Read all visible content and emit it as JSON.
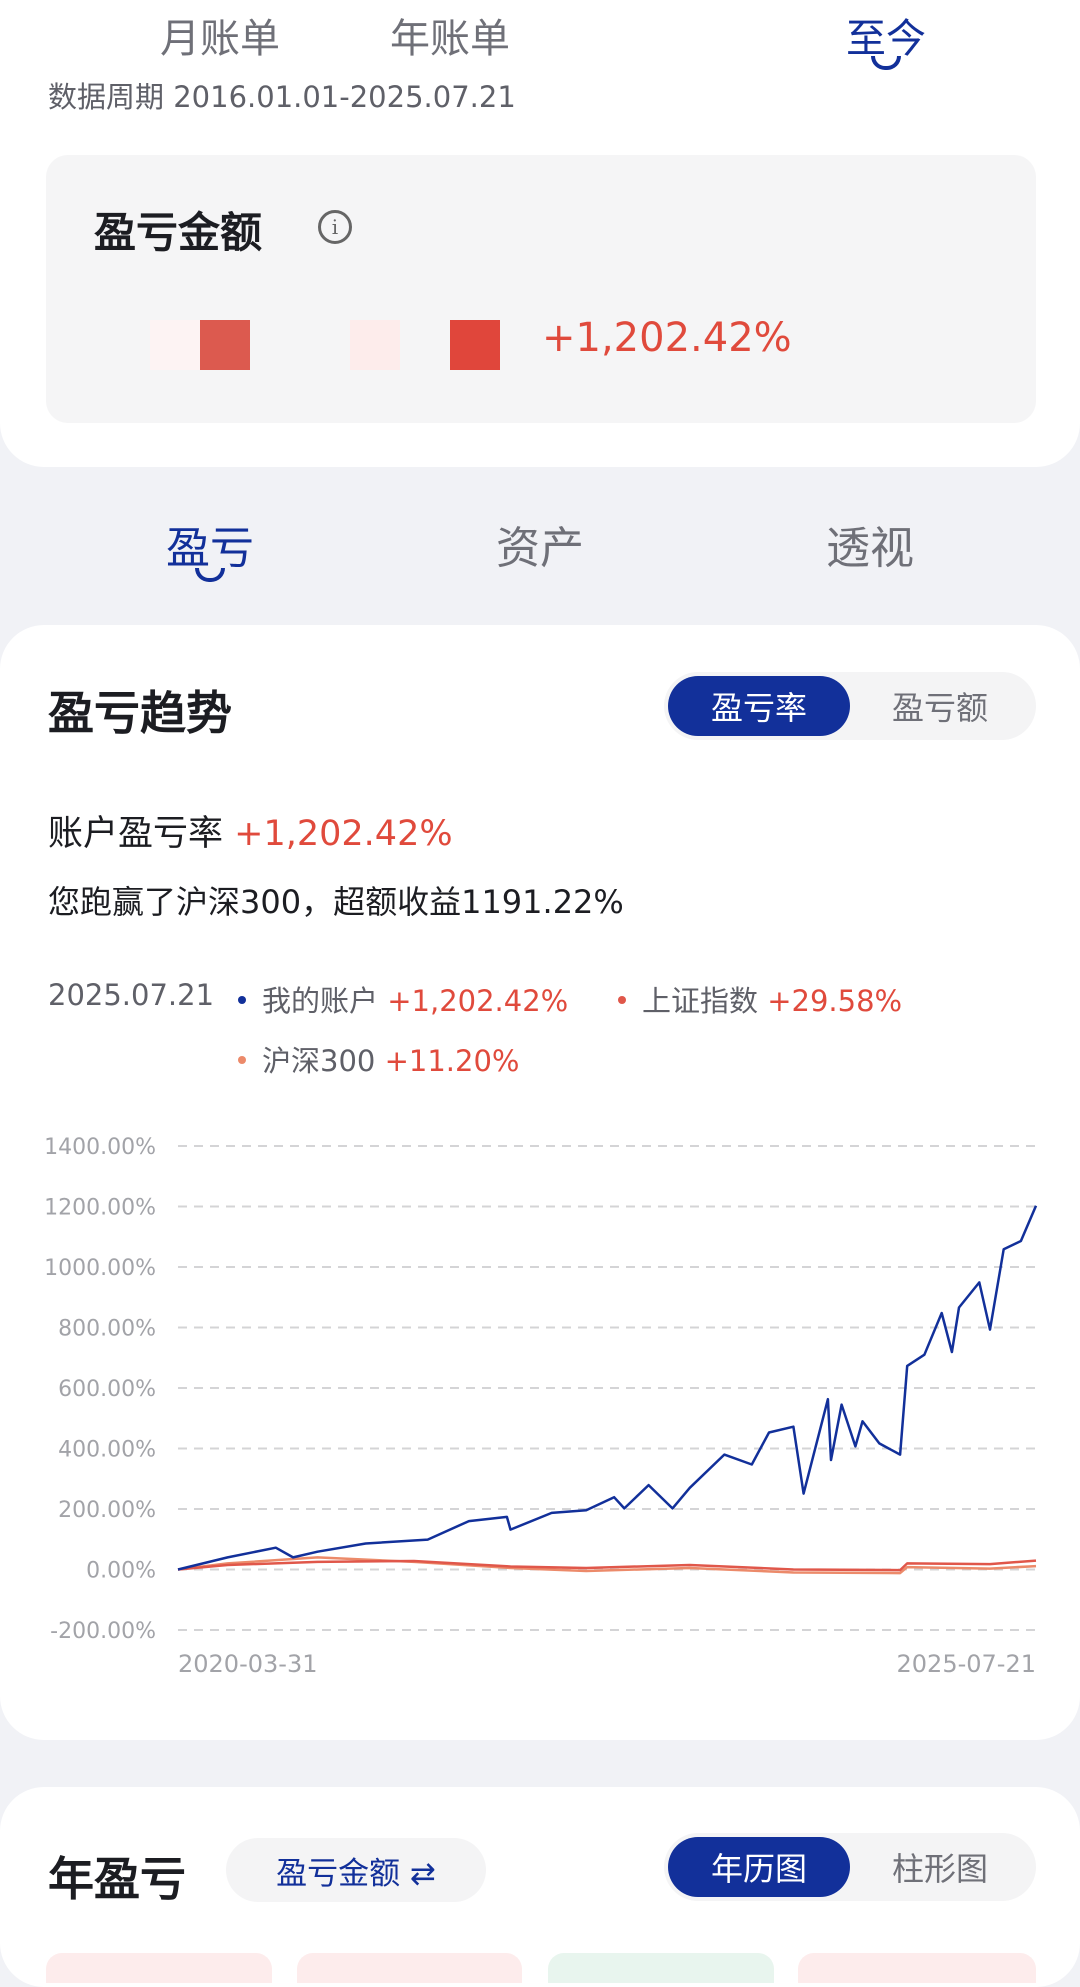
{
  "period_tabs": [
    {
      "label": "月账单"
    },
    {
      "label": "年账单"
    },
    {
      "label": "至今",
      "active": true
    }
  ],
  "period_text": "数据周期 2016.01.01-2025.07.21",
  "pnl_card": {
    "title": "盈亏金额",
    "info_icon": "info-icon",
    "amount_masked": true,
    "rate": "+1,202.42%"
  },
  "section_tabs": [
    {
      "label": "盈亏",
      "active": true
    },
    {
      "label": "资产"
    },
    {
      "label": "透视"
    }
  ],
  "trend": {
    "title": "盈亏趋势",
    "toggle": [
      {
        "label": "盈亏率",
        "active": true
      },
      {
        "label": "盈亏额"
      }
    ],
    "rate_label": "账户盈亏率",
    "rate_value": "+1,202.42%",
    "beat_text": "您跑赢了沪深300，超额收益1191.22%",
    "legend_date": "2025.07.21",
    "legend": [
      {
        "name": "我的账户",
        "value": "+1,202.42%",
        "color": "#12309a"
      },
      {
        "name": "上证指数",
        "value": "+29.58%",
        "color": "#e0574a"
      },
      {
        "name": "沪深300",
        "value": "+11.20%",
        "color": "#ec8a6a"
      }
    ]
  },
  "chart_data": {
    "type": "line",
    "ylim": [
      -200,
      1400
    ],
    "yticks": [
      "1400.00%",
      "1200.00%",
      "1000.00%",
      "800.00%",
      "600.00%",
      "400.00%",
      "200.00%",
      "0.00%",
      "-200.00%"
    ],
    "ytick_values": [
      1400,
      1200,
      1000,
      800,
      600,
      400,
      200,
      0,
      -200
    ],
    "xlim": [
      "2020-03-31",
      "2025-07-21"
    ],
    "xticks": [
      "2020-03-31",
      "2025-07-21"
    ],
    "grid": true,
    "series": [
      {
        "name": "我的账户",
        "color": "#12309a",
        "points": [
          [
            "2020-03-31",
            0
          ],
          [
            "2020-07-21",
            40
          ],
          [
            "2020-11-07",
            72
          ],
          [
            "2020-12-16",
            40
          ],
          [
            "2021-02-09",
            59
          ],
          [
            "2021-05-29",
            86
          ],
          [
            "2021-10-16",
            99
          ],
          [
            "2022-01-17",
            160
          ],
          [
            "2022-04-13",
            174
          ],
          [
            "2022-04-21",
            132
          ],
          [
            "2022-07-23",
            187
          ],
          [
            "2022-10-09",
            196
          ],
          [
            "2022-12-11",
            239
          ],
          [
            "2023-01-03",
            202
          ],
          [
            "2023-02-27",
            279
          ],
          [
            "2023-04-22",
            202
          ],
          [
            "2023-05-31",
            270
          ],
          [
            "2023-08-17",
            380
          ],
          [
            "2023-10-18",
            347
          ],
          [
            "2023-11-26",
            453
          ],
          [
            "2024-01-20",
            472
          ],
          [
            "2024-02-12",
            251
          ],
          [
            "2024-04-07",
            563
          ],
          [
            "2024-04-14",
            362
          ],
          [
            "2024-05-08",
            545
          ],
          [
            "2024-06-08",
            407
          ],
          [
            "2024-06-24",
            490
          ],
          [
            "2024-08-01",
            417
          ],
          [
            "2024-09-17",
            380
          ],
          [
            "2024-10-03",
            673
          ],
          [
            "2024-11-11",
            710
          ],
          [
            "2024-12-20",
            848
          ],
          [
            "2025-01-12",
            719
          ],
          [
            "2025-01-28",
            866
          ],
          [
            "2025-03-15",
            949
          ],
          [
            "2025-04-08",
            793
          ],
          [
            "2025-05-09",
            1059
          ],
          [
            "2025-06-17",
            1086
          ],
          [
            "2025-07-21",
            1202.42
          ]
        ]
      },
      {
        "name": "上证指数",
        "color": "#e0574a",
        "points": [
          [
            "2020-03-31",
            0
          ],
          [
            "2020-07-21",
            15
          ],
          [
            "2021-02-09",
            25
          ],
          [
            "2021-09-15",
            28
          ],
          [
            "2022-04-21",
            10
          ],
          [
            "2022-10-09",
            5
          ],
          [
            "2023-05-31",
            15
          ],
          [
            "2024-01-20",
            0
          ],
          [
            "2024-09-17",
            -2
          ],
          [
            "2024-10-03",
            20
          ],
          [
            "2025-04-08",
            18
          ],
          [
            "2025-07-21",
            29.58
          ]
        ]
      },
      {
        "name": "沪深300",
        "color": "#ec8a6a",
        "points": [
          [
            "2020-03-31",
            0
          ],
          [
            "2020-07-21",
            20
          ],
          [
            "2021-02-09",
            40
          ],
          [
            "2021-09-15",
            25
          ],
          [
            "2022-04-21",
            5
          ],
          [
            "2022-10-09",
            -5
          ],
          [
            "2023-05-31",
            5
          ],
          [
            "2024-01-20",
            -10
          ],
          [
            "2024-09-17",
            -12
          ],
          [
            "2024-10-03",
            8
          ],
          [
            "2025-04-08",
            3
          ],
          [
            "2025-07-21",
            11.2
          ]
        ]
      }
    ]
  },
  "yearly": {
    "title": "年盈亏",
    "metric_chip": "盈亏金额 ⇄",
    "toggle": [
      {
        "label": "年历图",
        "active": true
      },
      {
        "label": "柱形图"
      }
    ]
  }
}
